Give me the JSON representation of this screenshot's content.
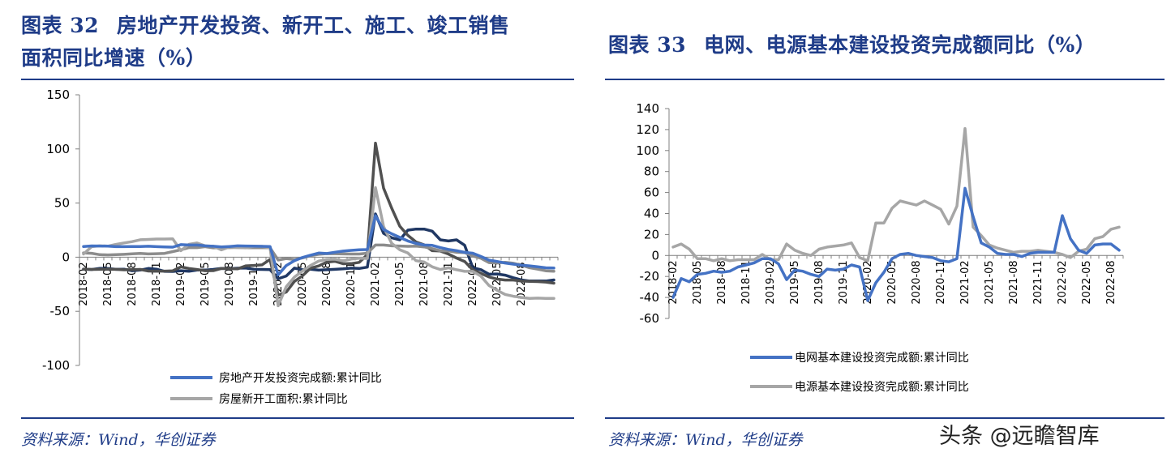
{
  "left": {
    "title_num": "图表 32",
    "title_line1": "房地产开发投资、新开工、施工、竣工销售",
    "title_line2": "面积同比增速（%）",
    "source": "资料来源：Wind，华创证券"
  },
  "right": {
    "title_num": "图表 33",
    "title_text": "电网、电源基本建设投资完成额同比（%）",
    "source": "资料来源：Wind，华创证券"
  },
  "watermark": "头条 @远瞻智库",
  "chart_data": [
    {
      "type": "line",
      "ylim": [
        -100,
        150
      ],
      "yticks": [
        150,
        100,
        50,
        0,
        -50,
        -100
      ],
      "x_tick_labels": [
        "2018-02",
        "2018-05",
        "2018-08",
        "2018-11",
        "2019-02",
        "2019-05",
        "2019-08",
        "2019-11",
        "2020-02",
        "2020-05",
        "2020-08",
        "2020-11",
        "2021-02",
        "2021-05",
        "2021-08",
        "2021-11",
        "2022-02",
        "2022-05",
        "2022-08"
      ],
      "x_points": 59,
      "series": [
        {
          "name": "房地产开发投资完成额:累计同比",
          "color": "#4472c4",
          "width": 3.5,
          "legend": true,
          "values": [
            9.9,
            10.4,
            10.3,
            10.2,
            9.7,
            9.7,
            9.9,
            9.9,
            10.1,
            9.7,
            9.5,
            9.3,
            11.6,
            11.2,
            11.2,
            10.5,
            10.1,
            9.4,
            9.9,
            10.5,
            10.3,
            10.2,
            10.0,
            9.9,
            -16.3,
            -7.7,
            -3.3,
            -0.3,
            1.9,
            3.8,
            3.4,
            4.6,
            5.6,
            6.3,
            6.8,
            7.0,
            38.3,
            25.6,
            21.6,
            18.3,
            15.0,
            12.7,
            11.2,
            10.9,
            8.8,
            7.2,
            6.0,
            4.4,
            3.7,
            0.7,
            -2.7,
            -4.0,
            -5.4,
            -6.4,
            -7.4,
            -8.0,
            -8.8,
            -9.8,
            -10.0
          ]
        },
        {
          "name": "房屋新开工面积:累计同比",
          "color": "#a6a6a6",
          "width": 3.5,
          "legend": true,
          "values": [
            2.9,
            9.7,
            10.5,
            10.2,
            11.8,
            13.2,
            14.4,
            16.1,
            16.4,
            16.8,
            16.8,
            17.0,
            6.0,
            11.9,
            13.1,
            10.5,
            10.1,
            6.7,
            9.5,
            8.9,
            8.6,
            10.0,
            10.0,
            8.5,
            -44.9,
            -27.2,
            -18.4,
            -12.8,
            -7.6,
            -3.6,
            -2.1,
            -1.9,
            -3.4,
            -1.8,
            -1.0,
            -1.2,
            64.3,
            28.2,
            12.8,
            6.9,
            3.8,
            -3.2,
            -4.5,
            -8.9,
            -11.4,
            -9.8,
            -11.6,
            -13.1,
            -13.1,
            -17.5,
            -26.2,
            -30.6,
            -34.4,
            -36.1,
            -37.2,
            -38.0,
            -37.8,
            -38.0,
            -38.0
          ]
        },
        {
          "name": "series3",
          "color": "#8c8c8c",
          "width": 3.5,
          "legend": false,
          "values": [
            4.0,
            3.6,
            2.3,
            2.1,
            2.3,
            2.6,
            3.1,
            3.5,
            3.0,
            3.2,
            3.5,
            5.2,
            6.8,
            8.8,
            8.8,
            9.7,
            8.6,
            8.8,
            8.8,
            9.0,
            8.7,
            8.7,
            8.7,
            8.7,
            -2.6,
            -1.3,
            -2.2,
            -0.7,
            1.4,
            2.6,
            3.3,
            3.2,
            3.0,
            2.9,
            2.9,
            3.7,
            11.2,
            11.2,
            10.5,
            10.3,
            10.0,
            10.2,
            9.5,
            7.9,
            5.9,
            5.8,
            4.5,
            4.2,
            1.1,
            -1.0,
            -5.0,
            -5.3,
            -4.8,
            -5.6,
            -7.3,
            -9.7,
            -11.0,
            -12.6,
            -13.0
          ]
        },
        {
          "name": "series4",
          "color": "#505050",
          "width": 3.5,
          "legend": false,
          "values": [
            -11.0,
            -11.3,
            -11.2,
            -11.1,
            -11.2,
            -11.7,
            -11.5,
            -11.3,
            -12.8,
            -12.9,
            -12.9,
            -12.6,
            -9.0,
            -10.4,
            -11.4,
            -12.5,
            -12.4,
            -10.4,
            -10.6,
            -10.8,
            -8.0,
            -7.6,
            -7.1,
            -2.1,
            -35.1,
            -32.2,
            -22.4,
            -17.2,
            -10.1,
            -8.1,
            -4.6,
            -3.8,
            -6.1,
            -5.9,
            -4.8,
            2.4,
            105.4,
            63.8,
            45.3,
            28.6,
            20.1,
            14.1,
            11.4,
            6.0,
            5.7,
            2.9,
            -0.8,
            -4.0,
            -11.7,
            -15.0,
            -18.3,
            -20.2,
            -21.1,
            -21.1,
            -22.1,
            -22.3,
            -22.5,
            -23.0,
            -24.0
          ]
        },
        {
          "name": "series5",
          "color": "#203864",
          "width": 3.5,
          "legend": false,
          "values": [
            -11.0,
            -11.4,
            -10.3,
            -10.5,
            -11.2,
            -11.1,
            -12.5,
            -11.9,
            -10.4,
            -11.1,
            -13.1,
            -13.2,
            -12.5,
            -13.0,
            -11.9,
            -11.9,
            -11.3,
            -10.4,
            -10.6,
            -10.2,
            -10.0,
            -11.2,
            -11.3,
            -11.5,
            -19.9,
            -17.4,
            -10.1,
            -11.7,
            -11.1,
            -12.0,
            -11.6,
            -11.2,
            -10.8,
            -10.1,
            -10.4,
            -9.2,
            40.0,
            22.0,
            18.0,
            16.0,
            25.0,
            26.0,
            26.0,
            24.0,
            16.0,
            15.0,
            16.0,
            11.0,
            -9.8,
            -11.5,
            -15.7,
            -15.5,
            -16.6,
            -19.0,
            -21.0,
            -22.0,
            -22.0,
            -22.0,
            -21.0
          ]
        }
      ]
    },
    {
      "type": "line",
      "ylim": [
        -60,
        140
      ],
      "yticks": [
        140,
        120,
        100,
        80,
        60,
        40,
        20,
        0,
        -20,
        -40,
        -60
      ],
      "x_tick_labels": [
        "2018-02",
        "2018-05",
        "2018-08",
        "2018-11",
        "2019-02",
        "2019-05",
        "2019-08",
        "2019-11",
        "2020-02",
        "2020-05",
        "2020-08",
        "2020-11",
        "2021-02",
        "2021-05",
        "2021-08",
        "2021-11",
        "2022-02",
        "2022-05",
        "2022-08"
      ],
      "x_points": 56,
      "series": [
        {
          "name": "电网基本建设投资完成额:累计同比",
          "color": "#4472c4",
          "width": 3.5,
          "legend": true,
          "values": [
            -40,
            -22,
            -25,
            -18,
            -17,
            -15,
            -16,
            -15,
            -11,
            -9,
            -7,
            -3,
            -3,
            -8,
            -23,
            -14,
            -15,
            -18,
            -20,
            -13,
            -14,
            -13,
            -9,
            -11,
            -43,
            -26,
            -16,
            -3,
            1,
            2,
            0,
            -1,
            -2,
            -5,
            -6,
            -3,
            64,
            37,
            12,
            8,
            2,
            1,
            1,
            -1,
            2,
            3,
            3,
            3,
            38,
            16,
            5,
            2,
            10,
            11,
            11,
            5
          ]
        },
        {
          "name": "电源基本建设投资完成额:累计同比",
          "color": "#a6a6a6",
          "width": 3.5,
          "legend": true,
          "values": [
            8,
            11,
            6,
            -3,
            -3,
            -5,
            -3,
            -5,
            -4,
            -4,
            -4,
            1,
            -4,
            -4,
            11,
            5,
            2,
            0,
            6,
            8,
            9,
            10,
            12,
            -2,
            -5,
            31,
            31,
            45,
            52,
            50,
            48,
            52,
            48,
            44,
            30,
            47,
            121,
            27,
            19,
            10,
            7,
            5,
            3,
            4,
            4,
            5,
            4,
            3,
            1,
            -2,
            4,
            6,
            16,
            18,
            25,
            27
          ]
        }
      ]
    }
  ]
}
